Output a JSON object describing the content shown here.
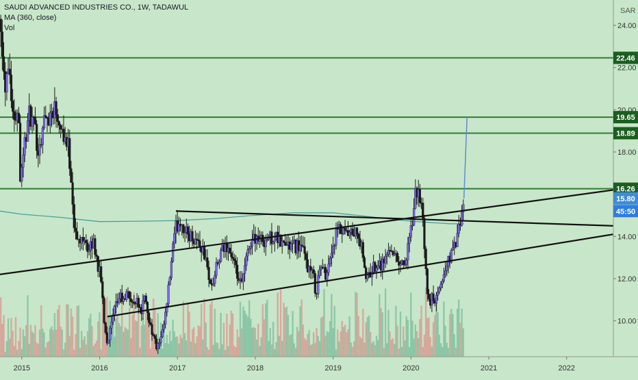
{
  "legend": {
    "symbol": "SAUDI ADVANCED INDUSTRIES CO., 1W, TADAWUL",
    "ma": "MA (360, close)",
    "vol": "Vol"
  },
  "currency": "SAR",
  "colors": {
    "background": "#c8e6c9",
    "up": "#7b68ee",
    "down": "#1a1a1a",
    "ma": "#4a9fa0",
    "level": "#2e7d32",
    "trendline": "#111111",
    "projection": "#5b8fd6",
    "vol_up": "#5fae8c",
    "vol_down": "#e07a7a",
    "label_price": "#3f8bd6",
    "label_countdown": "#2f7de1"
  },
  "labels": {
    "current_price": "15.80",
    "countdown": "45:50"
  },
  "chart_data": {
    "type": "candlestick",
    "interval": "1W",
    "y_axis": {
      "min": 8.3,
      "max": 25.2,
      "ticks": [
        24.0,
        22.0,
        20.0,
        18.0,
        14.0,
        12.0,
        10.0
      ],
      "tick_labels": [
        "24.00",
        "22.00",
        "20.00",
        "18.00",
        "14.00",
        "12.00",
        "10.00"
      ]
    },
    "x_axis": {
      "start": 2014.72,
      "end": 2022.6,
      "ticks": [
        2015,
        2016,
        2017,
        2018,
        2019,
        2020,
        2021,
        2022
      ],
      "tick_labels": [
        "2015",
        "2016",
        "2017",
        "2018",
        "2019",
        "2020",
        "2021",
        "2022"
      ]
    },
    "horizontal_levels": [
      {
        "price": 22.46,
        "label": "22.46"
      },
      {
        "price": 19.65,
        "label": "19.65"
      },
      {
        "price": 18.89,
        "label": "18.89"
      },
      {
        "price": 16.26,
        "label": "16.26"
      }
    ],
    "trendlines": [
      {
        "from": [
          2014.72,
          12.2
        ],
        "to": [
          2022.6,
          16.2
        ]
      },
      {
        "from": [
          2016.1,
          10.2
        ],
        "to": [
          2022.6,
          14.1
        ]
      },
      {
        "from": [
          2016.98,
          15.2
        ],
        "to": [
          2022.6,
          14.5
        ]
      }
    ],
    "projection": {
      "from": [
        2020.68,
        15.8
      ],
      "to": [
        2020.72,
        19.65
      ]
    },
    "price_path": [
      [
        2014.73,
        24.3
      ],
      [
        2014.78,
        21.0
      ],
      [
        2014.83,
        22.5
      ],
      [
        2014.9,
        19.2
      ],
      [
        2014.95,
        20.5
      ],
      [
        2014.98,
        17.0
      ],
      [
        2015.04,
        18.5
      ],
      [
        2015.1,
        19.8
      ],
      [
        2015.16,
        19.1
      ],
      [
        2015.22,
        18.0
      ],
      [
        2015.28,
        19.5
      ],
      [
        2015.35,
        19.7
      ],
      [
        2015.42,
        20.2
      ],
      [
        2015.48,
        19.6
      ],
      [
        2015.55,
        18.7
      ],
      [
        2015.6,
        18.2
      ],
      [
        2015.64,
        16.5
      ],
      [
        2015.68,
        14.2
      ],
      [
        2015.74,
        13.6
      ],
      [
        2015.8,
        14.2
      ],
      [
        2015.86,
        13.2
      ],
      [
        2015.92,
        13.8
      ],
      [
        2015.97,
        12.8
      ],
      [
        2016.02,
        11.9
      ],
      [
        2016.06,
        9.9
      ],
      [
        2016.1,
        9.0
      ],
      [
        2016.14,
        9.6
      ],
      [
        2016.2,
        10.6
      ],
      [
        2016.26,
        11.2
      ],
      [
        2016.32,
        10.8
      ],
      [
        2016.36,
        11.5
      ],
      [
        2016.42,
        10.7
      ],
      [
        2016.48,
        11.2
      ],
      [
        2016.52,
        10.4
      ],
      [
        2016.58,
        11.0
      ],
      [
        2016.64,
        10.0
      ],
      [
        2016.7,
        9.1
      ],
      [
        2016.74,
        8.7
      ],
      [
        2016.8,
        9.2
      ],
      [
        2016.86,
        10.6
      ],
      [
        2016.9,
        12.0
      ],
      [
        2016.94,
        13.4
      ],
      [
        2016.98,
        14.4
      ],
      [
        2017.04,
        14.8
      ],
      [
        2017.1,
        14.2
      ],
      [
        2017.18,
        14.0
      ],
      [
        2017.26,
        13.8
      ],
      [
        2017.34,
        13.2
      ],
      [
        2017.4,
        12.2
      ],
      [
        2017.44,
        11.5
      ],
      [
        2017.5,
        12.5
      ],
      [
        2017.58,
        13.3
      ],
      [
        2017.64,
        13.6
      ],
      [
        2017.7,
        13.0
      ],
      [
        2017.76,
        12.2
      ],
      [
        2017.82,
        11.6
      ],
      [
        2017.88,
        12.8
      ],
      [
        2017.94,
        13.8
      ],
      [
        2018.0,
        14.0
      ],
      [
        2018.08,
        13.8
      ],
      [
        2018.16,
        13.9
      ],
      [
        2018.24,
        14.0
      ],
      [
        2018.32,
        13.7
      ],
      [
        2018.4,
        13.6
      ],
      [
        2018.48,
        13.5
      ],
      [
        2018.56,
        13.6
      ],
      [
        2018.62,
        13.2
      ],
      [
        2018.68,
        12.5
      ],
      [
        2018.74,
        12.2
      ],
      [
        2018.78,
        11.3
      ],
      [
        2018.8,
        11.9
      ],
      [
        2018.84,
        12.6
      ],
      [
        2018.9,
        12.2
      ],
      [
        2018.95,
        12.8
      ],
      [
        2019.0,
        13.6
      ],
      [
        2019.06,
        14.3
      ],
      [
        2019.12,
        14.1
      ],
      [
        2019.2,
        14.0
      ],
      [
        2019.28,
        14.2
      ],
      [
        2019.36,
        13.6
      ],
      [
        2019.4,
        12.4
      ],
      [
        2019.44,
        12.0
      ],
      [
        2019.5,
        12.4
      ],
      [
        2019.56,
        12.8
      ],
      [
        2019.62,
        12.7
      ],
      [
        2019.68,
        13.0
      ],
      [
        2019.74,
        13.6
      ],
      [
        2019.8,
        13.0
      ],
      [
        2019.86,
        12.8
      ],
      [
        2019.92,
        12.7
      ],
      [
        2019.97,
        13.5
      ],
      [
        2020.02,
        14.8
      ],
      [
        2020.06,
        16.0
      ],
      [
        2020.1,
        16.2
      ],
      [
        2020.14,
        15.2
      ],
      [
        2020.17,
        13.6
      ],
      [
        2020.2,
        11.7
      ],
      [
        2020.24,
        10.7
      ],
      [
        2020.28,
        11.2
      ],
      [
        2020.32,
        10.9
      ],
      [
        2020.36,
        11.4
      ],
      [
        2020.42,
        12.2
      ],
      [
        2020.48,
        12.9
      ],
      [
        2020.54,
        13.3
      ],
      [
        2020.6,
        14.0
      ],
      [
        2020.64,
        14.7
      ],
      [
        2020.68,
        15.8
      ]
    ],
    "moving_average": [
      [
        2014.72,
        15.2
      ],
      [
        2015.0,
        15.05
      ],
      [
        2015.5,
        14.9
      ],
      [
        2016.0,
        14.7
      ],
      [
        2016.5,
        14.72
      ],
      [
        2017.0,
        14.75
      ],
      [
        2017.5,
        14.85
      ],
      [
        2018.0,
        15.0
      ],
      [
        2018.5,
        15.12
      ],
      [
        2019.0,
        15.12
      ],
      [
        2019.5,
        14.92
      ],
      [
        2020.0,
        14.72
      ],
      [
        2020.5,
        14.6
      ],
      [
        2020.68,
        14.6
      ]
    ]
  }
}
